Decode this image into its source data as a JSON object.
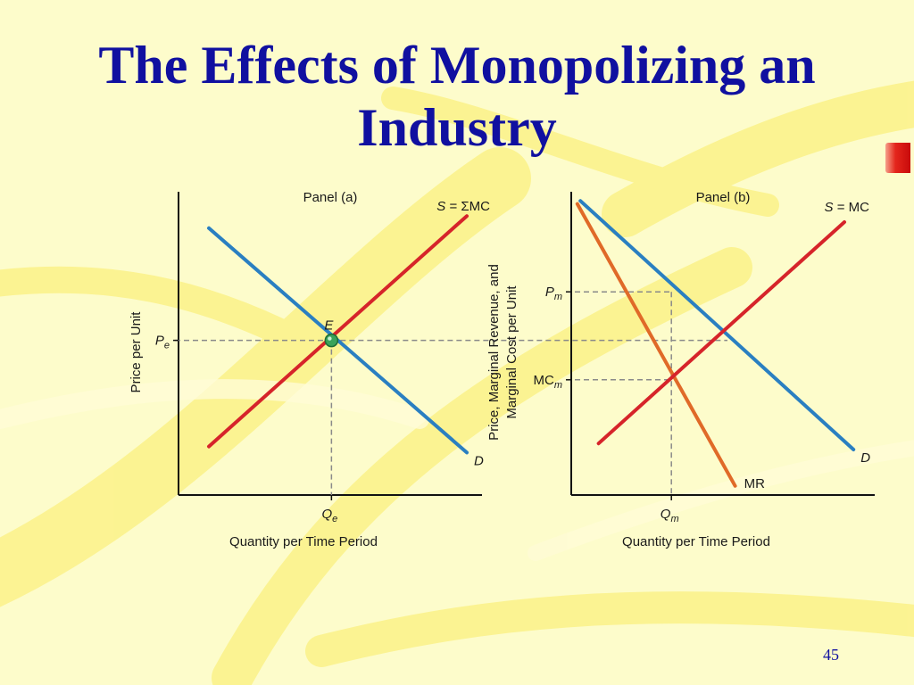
{
  "slide": {
    "title_line1": "The Effects of Monopolizing an",
    "title_line2": "Industry",
    "number": "45"
  },
  "colors": {
    "title": "#1010a0",
    "demand": "#2a7fc1",
    "supply": "#d6242a",
    "marginal_revenue": "#e06a28",
    "equilibrium_point": "#3aa35a",
    "background": "#fdfccb"
  },
  "chart_data": [
    {
      "type": "line",
      "title": "Panel (a)",
      "xlabel": "Quantity per Time Period",
      "ylabel": "Price per Unit",
      "xlim": [
        0,
        10
      ],
      "ylim": [
        0,
        10
      ],
      "grid": false,
      "series": [
        {
          "name": "D",
          "color": "#2a7fc1",
          "points": [
            [
              1,
              8.8
            ],
            [
              9.5,
              1.4
            ]
          ]
        },
        {
          "name": "S = ΣMC",
          "color": "#d6242a",
          "points": [
            [
              1,
              1.6
            ],
            [
              9.5,
              9.2
            ]
          ]
        }
      ],
      "point": {
        "label": "E",
        "x": 5.04,
        "y": 5.1
      },
      "x_ticks": [
        {
          "value": 5.04,
          "label": "Q",
          "sub": "e"
        }
      ],
      "y_ticks": [
        {
          "value": 5.1,
          "label": "P",
          "sub": "e"
        }
      ]
    },
    {
      "type": "line",
      "title": "Panel (b)",
      "xlabel": "Quantity per Time Period",
      "ylabel": "Price, Marginal Revenue, and Marginal Cost per Unit",
      "xlim": [
        0,
        10
      ],
      "ylim": [
        0,
        10
      ],
      "grid": false,
      "series": [
        {
          "name": "D",
          "color": "#2a7fc1",
          "points": [
            [
              0.3,
              9.7
            ],
            [
              9.3,
              1.5
            ]
          ]
        },
        {
          "name": "MR",
          "color": "#e06a28",
          "points": [
            [
              0.2,
              9.6
            ],
            [
              5.4,
              0.3
            ]
          ]
        },
        {
          "name": "S = MC",
          "color": "#d6242a",
          "points": [
            [
              0.9,
              1.7
            ],
            [
              9.0,
              9.0
            ]
          ]
        }
      ],
      "x_ticks": [
        {
          "value": 3.3,
          "label": "Q",
          "sub": "m"
        }
      ],
      "y_ticks": [
        {
          "value": 6.7,
          "label": "P",
          "sub": "m"
        },
        {
          "value": 3.8,
          "label": "MC",
          "sub": "m"
        }
      ],
      "pe_reference": 5.1
    }
  ]
}
